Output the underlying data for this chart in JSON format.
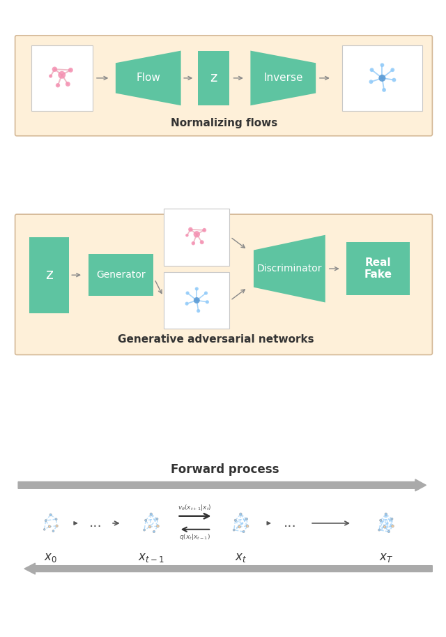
{
  "panel1_bg": "#FEF0D9",
  "panel2_bg": "#FEF0D9",
  "teal_color": "#5EC4A1",
  "pink_node": "#F48FB1",
  "pink_edge": "#E8A0B0",
  "blue_node": "#90CAF9",
  "blue_node_dark": "#5B9BD5",
  "blue_edge": "#90CAF9",
  "orange_node": "#F5CFA0",
  "white": "#FFFFFF",
  "border_color": "#C8C8C8",
  "panel_border": "#D4B896",
  "arrow_color": "#888888",
  "text_dark": "#333333",
  "title1": "Normalizing flows",
  "title2": "Generative adversarial networks",
  "title3": "Forward process",
  "label_z": "z",
  "label_flow": "Flow",
  "label_inverse": "Inverse",
  "label_generator": "Generator",
  "label_discriminator": "Discriminator",
  "label_real_fake": "Real\nFake",
  "label_x0": "$x_0$",
  "label_xt_1": "$x_{t-1}$",
  "label_xt": "$x_t$",
  "label_xT": "$x_T$"
}
